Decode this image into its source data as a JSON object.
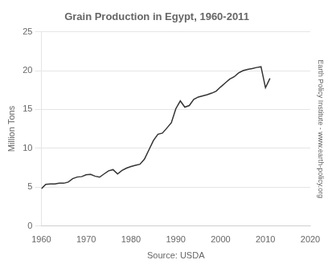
{
  "chart_data": {
    "type": "line",
    "title": "Grain Production in Egypt, 1960-2011",
    "xlabel": "Source: USDA",
    "ylabel": "Million Tons",
    "annotations": [
      "Earth Policy Institute - www.earth-policy.org"
    ],
    "x": [
      1960,
      1961,
      1962,
      1963,
      1964,
      1965,
      1966,
      1967,
      1968,
      1969,
      1970,
      1971,
      1972,
      1973,
      1974,
      1975,
      1976,
      1977,
      1978,
      1979,
      1980,
      1981,
      1982,
      1983,
      1984,
      1985,
      1986,
      1987,
      1988,
      1989,
      1990,
      1991,
      1992,
      1993,
      1994,
      1995,
      1996,
      1997,
      1998,
      1999,
      2000,
      2001,
      2002,
      2003,
      2004,
      2005,
      2006,
      2007,
      2008,
      2009,
      2010,
      2011
    ],
    "values": [
      4.8,
      5.35,
      5.4,
      5.42,
      5.5,
      5.5,
      5.65,
      6.1,
      6.3,
      6.35,
      6.6,
      6.65,
      6.4,
      6.28,
      6.7,
      7.1,
      7.25,
      6.7,
      7.15,
      7.45,
      7.65,
      7.8,
      7.95,
      8.6,
      9.8,
      11.0,
      11.8,
      11.95,
      12.6,
      13.3,
      15.1,
      16.1,
      15.3,
      15.5,
      16.3,
      16.6,
      16.75,
      16.9,
      17.1,
      17.35,
      17.9,
      18.4,
      18.9,
      19.2,
      19.7,
      20.0,
      20.15,
      20.25,
      20.4,
      20.5,
      17.8,
      19.0
    ],
    "color": "#333333",
    "xlim": [
      1960,
      2020
    ],
    "xticks": [
      1960,
      1970,
      1980,
      1990,
      2000,
      2010,
      2020
    ],
    "ylim": [
      0,
      25
    ],
    "yticks": [
      0,
      5,
      10,
      15,
      20,
      25
    ],
    "grid": "y"
  }
}
